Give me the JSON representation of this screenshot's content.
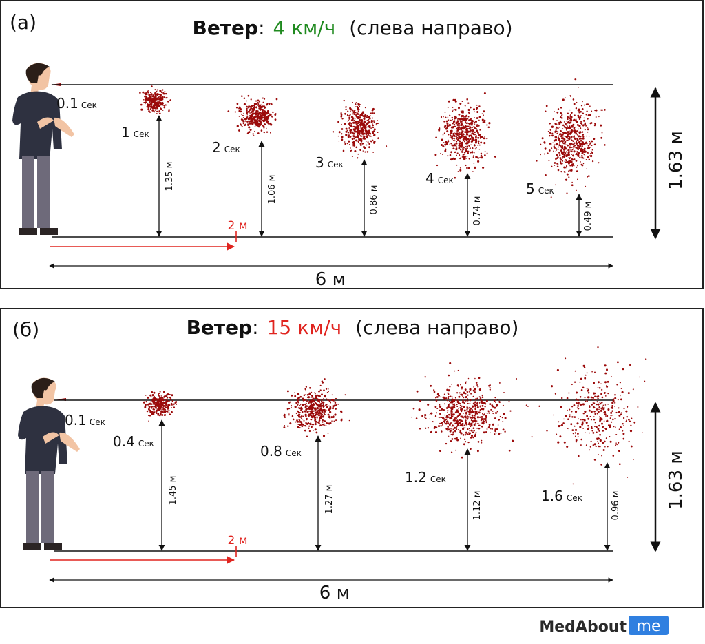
{
  "colors": {
    "droplet": "#9b0a0a",
    "wind_slow": "#1f8a1f",
    "wind_fast": "#e0241f",
    "guide_red": "#e0241f",
    "brand_box": "#2f7fe0"
  },
  "panels": [
    {
      "tag": "(а)",
      "title_bold": "Ветер",
      "title_colon": ":",
      "wind_value": "4 км/ч",
      "direction": "(слева направо)",
      "origin_time": "0.1",
      "origin_unit": "Сек",
      "height_label": "1.63 м",
      "distance_label": "6 м",
      "two_m_label": "2 м",
      "clouds": [
        {
          "time": "1",
          "unit": "Сек",
          "height": "1.35 м",
          "height_m": 1.35
        },
        {
          "time": "2",
          "unit": "Сек",
          "height": "1.06 м",
          "height_m": 1.06
        },
        {
          "time": "3",
          "unit": "Сек",
          "height": "0.86 м",
          "height_m": 0.86
        },
        {
          "time": "4",
          "unit": "Сек",
          "height": "0.74 м",
          "height_m": 0.74
        },
        {
          "time": "5",
          "unit": "Сек",
          "height": "0.49 м",
          "height_m": 0.49
        }
      ]
    },
    {
      "tag": "(б)",
      "title_bold": "Ветер",
      "title_colon": ":",
      "wind_value": "15 км/ч",
      "direction": "(слева направо)",
      "origin_time": "0.1",
      "origin_unit": "Сек",
      "height_label": "1.63 м",
      "distance_label": "6 м",
      "two_m_label": "2 м",
      "clouds": [
        {
          "time": "0.4",
          "unit": "Сек",
          "height": "1.45 м",
          "height_m": 1.45
        },
        {
          "time": "0.8",
          "unit": "Сек",
          "height": "1.27 м",
          "height_m": 1.27
        },
        {
          "time": "1.2",
          "unit": "Сек",
          "height": "1.12 м",
          "height_m": 1.12
        },
        {
          "time": "1.6",
          "unit": "Сек",
          "height": "0.96 м",
          "height_m": 0.96
        }
      ]
    }
  ],
  "brand": {
    "name": "MedAbout",
    "suffix": "me"
  }
}
